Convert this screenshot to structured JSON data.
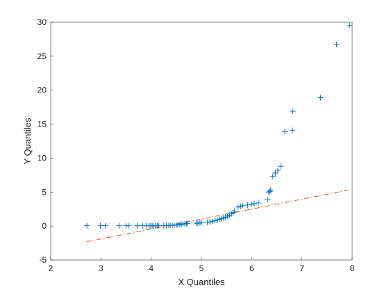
{
  "chart_data": {
    "type": "scatter",
    "title": "",
    "xlabel": "X Quantiles",
    "ylabel": "Y Quantiles",
    "xlim": [
      2,
      8
    ],
    "ylim": [
      -5,
      30
    ],
    "xticks": [
      "2",
      "3",
      "4",
      "5",
      "6",
      "7",
      "8"
    ],
    "yticks": [
      "-5",
      "0",
      "5",
      "10",
      "15",
      "20",
      "25",
      "30"
    ],
    "xtick_values": [
      2,
      3,
      4,
      5,
      6,
      7,
      8
    ],
    "ytick_values": [
      -5,
      0,
      5,
      10,
      15,
      20,
      25,
      30
    ],
    "grid": false,
    "marker_color": "#0072BD",
    "line_color": "#D95319",
    "series": [
      {
        "marker": "plus",
        "x": [
          2.72,
          2.99,
          3.09,
          3.36,
          3.5,
          3.55,
          3.72,
          3.83,
          3.9,
          3.96,
          3.99,
          4.02,
          4.05,
          4.08,
          4.12,
          4.15,
          4.25,
          4.3,
          4.35,
          4.38,
          4.42,
          4.46,
          4.5,
          4.53,
          4.57,
          4.6,
          4.63,
          4.67,
          4.7,
          4.72,
          4.9,
          4.93,
          4.97,
          5.0,
          5.12,
          5.17,
          5.22,
          5.27,
          5.32,
          5.36,
          5.4,
          5.44,
          5.48,
          5.52,
          5.56,
          5.6,
          5.63,
          5.66,
          5.73,
          5.78,
          5.82,
          5.92,
          6.0,
          6.05,
          6.13,
          6.32,
          6.34,
          6.36,
          6.38,
          6.42,
          6.47,
          6.52,
          6.58,
          6.66,
          6.81,
          6.82,
          7.37,
          7.69,
          7.95
        ],
        "y": [
          0.05,
          0.05,
          0.05,
          0.05,
          0.05,
          0.05,
          0.05,
          0.05,
          0.05,
          0.05,
          0.05,
          0.05,
          0.05,
          0.05,
          0.05,
          0.05,
          0.05,
          0.05,
          0.08,
          0.08,
          0.1,
          0.12,
          0.15,
          0.18,
          0.2,
          0.25,
          0.3,
          0.35,
          0.35,
          0.4,
          0.4,
          0.42,
          0.45,
          0.5,
          0.55,
          0.6,
          0.7,
          0.8,
          0.9,
          1.0,
          1.1,
          1.2,
          1.3,
          1.45,
          1.6,
          1.8,
          2.0,
          2.2,
          2.8,
          2.9,
          3.0,
          3.1,
          3.2,
          3.3,
          3.4,
          3.9,
          5.0,
          5.1,
          5.3,
          7.3,
          7.8,
          8.2,
          8.8,
          13.9,
          14.1,
          16.9,
          18.9,
          26.7,
          29.5
        ]
      }
    ],
    "reference_line": {
      "style": "dash-dot",
      "x": [
        2.72,
        7.95
      ],
      "y": [
        -2.3,
        5.35
      ]
    }
  }
}
